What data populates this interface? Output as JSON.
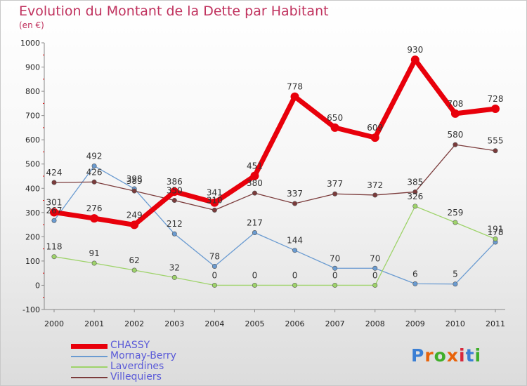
{
  "page": {
    "title": "Evolution du Montant de la Dette par Habitant",
    "subtitle": "(en €)",
    "logo_text": "Proxiti"
  },
  "chart_data": {
    "type": "line",
    "title": "Evolution du Montant de la Dette par Habitant",
    "subtitle": "(en €)",
    "categories": [
      "2000",
      "2001",
      "2002",
      "2003",
      "2004",
      "2005",
      "2006",
      "2007",
      "2008",
      "2009",
      "2010",
      "2011"
    ],
    "ylim": [
      -100,
      1000
    ],
    "yticks": [
      -100,
      0,
      100,
      200,
      300,
      400,
      500,
      600,
      700,
      800,
      900,
      1000
    ],
    "grid": false,
    "legend_position": "bottom-left",
    "series": [
      {
        "name": "CHASSY",
        "color": "#e8000b",
        "values": [
          301,
          276,
          249,
          386,
          341,
          451,
          778,
          650,
          609,
          930,
          708,
          728
        ],
        "labels": [
          "301",
          "276",
          "249",
          "386",
          "341",
          "451",
          "778",
          "650",
          "609",
          "930",
          "708",
          "728"
        ]
      },
      {
        "name": "Mornay-Berry",
        "color": "#6a9bd1",
        "values": [
          267,
          492,
          398,
          212,
          78,
          217,
          144,
          70,
          70,
          6,
          5,
          178
        ],
        "labels": [
          "267",
          "492",
          "398",
          "212",
          "78",
          "217",
          "144",
          "70",
          "70",
          "6",
          "5",
          "178"
        ]
      },
      {
        "name": "Laverdines",
        "color": "#9ed36a",
        "values": [
          118,
          91,
          62,
          32,
          0,
          0,
          0,
          0,
          0,
          326,
          259,
          191
        ],
        "labels": [
          "118",
          "91",
          "62",
          "32",
          "0",
          "0",
          "0",
          "0",
          "0",
          "326",
          "259",
          "191"
        ]
      },
      {
        "name": "Villequiers",
        "color": "#7b3b3b",
        "values": [
          424,
          426,
          389,
          350,
          310,
          380,
          337,
          377,
          372,
          385,
          580,
          555
        ],
        "labels": [
          "424",
          "426",
          "389",
          "350",
          "310",
          "380",
          "337",
          "377",
          "372",
          "385",
          "580",
          "555"
        ]
      }
    ]
  }
}
